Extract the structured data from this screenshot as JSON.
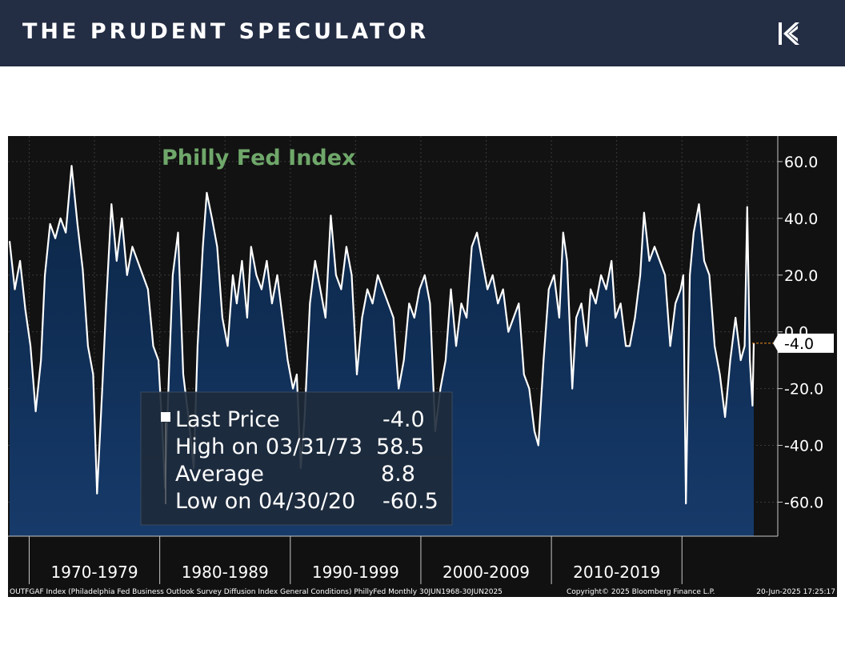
{
  "header": {
    "brand": "THE PRUDENT SPECULATOR",
    "logo_icon": "pk-monogram-icon"
  },
  "colors": {
    "header_bg": "#232d44",
    "chart_bg": "#111111",
    "area_fill_top": "#0b2545",
    "area_fill_bottom": "#163a6a",
    "line": "#ffffff",
    "title": "#6fa86a",
    "last_marker": "#f08a24"
  },
  "chart_data": {
    "type": "area",
    "title": "Philly Fed Index",
    "y_ticks": [
      "60.0",
      "40.0",
      "20.0",
      "0.0",
      "-20.0",
      "-40.0",
      "-60.0"
    ],
    "y_tick_values": [
      60,
      40,
      20,
      0,
      -20,
      -40,
      -60
    ],
    "ylim": [
      -72,
      69
    ],
    "decade_labels": [
      "1970-1979",
      "1980-1989",
      "1990-1999",
      "2000-2009",
      "2010-2019"
    ],
    "x_range": [
      1968.5,
      2025.5
    ],
    "last_value_label": "-4.0",
    "legend": {
      "rows": [
        {
          "label": "Last Price",
          "value": "-4.0"
        },
        {
          "label": "High on 03/31/73",
          "value": "58.5"
        },
        {
          "label": "Average",
          "value": "8.8"
        },
        {
          "label": "Low on 04/30/20",
          "value": "-60.5"
        }
      ]
    },
    "footer_left": "OUTFGAF Index (Philadelphia Fed Business Outlook Survey Diffusion Index General Conditions) PhillyFed  Monthly 30JUN1968-30JUN2025",
    "footer_center": "Copyright© 2025 Bloomberg Finance L.P.",
    "footer_right": "20-Jun-2025 17:25:17",
    "points": [
      [
        1968.5,
        32
      ],
      [
        1968.9,
        15
      ],
      [
        1969.3,
        25
      ],
      [
        1969.7,
        8
      ],
      [
        1970.1,
        -5
      ],
      [
        1970.5,
        -28
      ],
      [
        1970.9,
        -10
      ],
      [
        1971.2,
        20
      ],
      [
        1971.6,
        38
      ],
      [
        1972.0,
        33
      ],
      [
        1972.4,
        40
      ],
      [
        1972.8,
        35
      ],
      [
        1973.25,
        58.5
      ],
      [
        1973.7,
        38
      ],
      [
        1974.1,
        22
      ],
      [
        1974.5,
        -5
      ],
      [
        1974.9,
        -15
      ],
      [
        1975.2,
        -57
      ],
      [
        1975.6,
        -20
      ],
      [
        1975.9,
        10
      ],
      [
        1976.3,
        45
      ],
      [
        1976.7,
        25
      ],
      [
        1977.1,
        40
      ],
      [
        1977.5,
        20
      ],
      [
        1977.9,
        30
      ],
      [
        1978.3,
        25
      ],
      [
        1978.7,
        20
      ],
      [
        1979.1,
        15
      ],
      [
        1979.5,
        -5
      ],
      [
        1979.9,
        -10
      ],
      [
        1980.2,
        -35
      ],
      [
        1980.4,
        -55
      ],
      [
        1980.7,
        -15
      ],
      [
        1981.0,
        20
      ],
      [
        1981.4,
        35
      ],
      [
        1981.8,
        -15
      ],
      [
        1982.2,
        -30
      ],
      [
        1982.6,
        -48
      ],
      [
        1982.9,
        -5
      ],
      [
        1983.3,
        30
      ],
      [
        1983.6,
        49
      ],
      [
        1984.0,
        40
      ],
      [
        1984.4,
        30
      ],
      [
        1984.8,
        5
      ],
      [
        1985.2,
        -5
      ],
      [
        1985.6,
        20
      ],
      [
        1985.9,
        10
      ],
      [
        1986.3,
        25
      ],
      [
        1986.7,
        5
      ],
      [
        1987.0,
        30
      ],
      [
        1987.4,
        20
      ],
      [
        1987.8,
        15
      ],
      [
        1988.2,
        25
      ],
      [
        1988.6,
        10
      ],
      [
        1989.0,
        20
      ],
      [
        1989.4,
        5
      ],
      [
        1989.8,
        -10
      ],
      [
        1990.2,
        -20
      ],
      [
        1990.5,
        -15
      ],
      [
        1990.8,
        -48
      ],
      [
        1991.1,
        -30
      ],
      [
        1991.5,
        10
      ],
      [
        1991.9,
        25
      ],
      [
        1992.3,
        15
      ],
      [
        1992.7,
        5
      ],
      [
        1993.1,
        41
      ],
      [
        1993.5,
        20
      ],
      [
        1993.9,
        15
      ],
      [
        1994.3,
        30
      ],
      [
        1994.7,
        20
      ],
      [
        1995.1,
        -15
      ],
      [
        1995.5,
        5
      ],
      [
        1995.9,
        15
      ],
      [
        1996.3,
        10
      ],
      [
        1996.7,
        20
      ],
      [
        1997.1,
        15
      ],
      [
        1997.5,
        10
      ],
      [
        1997.9,
        5
      ],
      [
        1998.3,
        -20
      ],
      [
        1998.7,
        -10
      ],
      [
        1999.1,
        10
      ],
      [
        1999.5,
        5
      ],
      [
        1999.9,
        15
      ],
      [
        2000.3,
        20
      ],
      [
        2000.7,
        10
      ],
      [
        2001.1,
        -35
      ],
      [
        2001.5,
        -20
      ],
      [
        2001.9,
        -10
      ],
      [
        2002.3,
        15
      ],
      [
        2002.7,
        -5
      ],
      [
        2003.1,
        10
      ],
      [
        2003.5,
        5
      ],
      [
        2003.9,
        30
      ],
      [
        2004.3,
        35
      ],
      [
        2004.7,
        25
      ],
      [
        2005.1,
        15
      ],
      [
        2005.5,
        20
      ],
      [
        2005.9,
        10
      ],
      [
        2006.3,
        15
      ],
      [
        2006.7,
        0
      ],
      [
        2007.1,
        5
      ],
      [
        2007.5,
        10
      ],
      [
        2007.9,
        -15
      ],
      [
        2008.3,
        -20
      ],
      [
        2008.7,
        -35
      ],
      [
        2009.0,
        -40
      ],
      [
        2009.4,
        -10
      ],
      [
        2009.8,
        15
      ],
      [
        2010.2,
        20
      ],
      [
        2010.6,
        5
      ],
      [
        2010.9,
        35
      ],
      [
        2011.2,
        25
      ],
      [
        2011.6,
        -20
      ],
      [
        2011.9,
        5
      ],
      [
        2012.3,
        10
      ],
      [
        2012.7,
        -5
      ],
      [
        2013.0,
        15
      ],
      [
        2013.4,
        10
      ],
      [
        2013.8,
        20
      ],
      [
        2014.2,
        15
      ],
      [
        2014.6,
        25
      ],
      [
        2014.9,
        5
      ],
      [
        2015.3,
        10
      ],
      [
        2015.7,
        -5
      ],
      [
        2016.0,
        -5
      ],
      [
        2016.4,
        5
      ],
      [
        2016.8,
        20
      ],
      [
        2017.1,
        42
      ],
      [
        2017.5,
        25
      ],
      [
        2017.9,
        30
      ],
      [
        2018.3,
        25
      ],
      [
        2018.7,
        20
      ],
      [
        2019.1,
        -5
      ],
      [
        2019.5,
        10
      ],
      [
        2019.9,
        15
      ],
      [
        2020.1,
        20
      ],
      [
        2020.3,
        -60.5
      ],
      [
        2020.6,
        20
      ],
      [
        2020.9,
        35
      ],
      [
        2021.3,
        45
      ],
      [
        2021.7,
        25
      ],
      [
        2022.1,
        20
      ],
      [
        2022.5,
        -5
      ],
      [
        2022.9,
        -15
      ],
      [
        2023.3,
        -30
      ],
      [
        2023.7,
        -10
      ],
      [
        2024.1,
        5
      ],
      [
        2024.5,
        -10
      ],
      [
        2024.8,
        -5
      ],
      [
        2025.0,
        44
      ],
      [
        2025.2,
        -10
      ],
      [
        2025.4,
        -26
      ],
      [
        2025.5,
        -4
      ]
    ]
  }
}
